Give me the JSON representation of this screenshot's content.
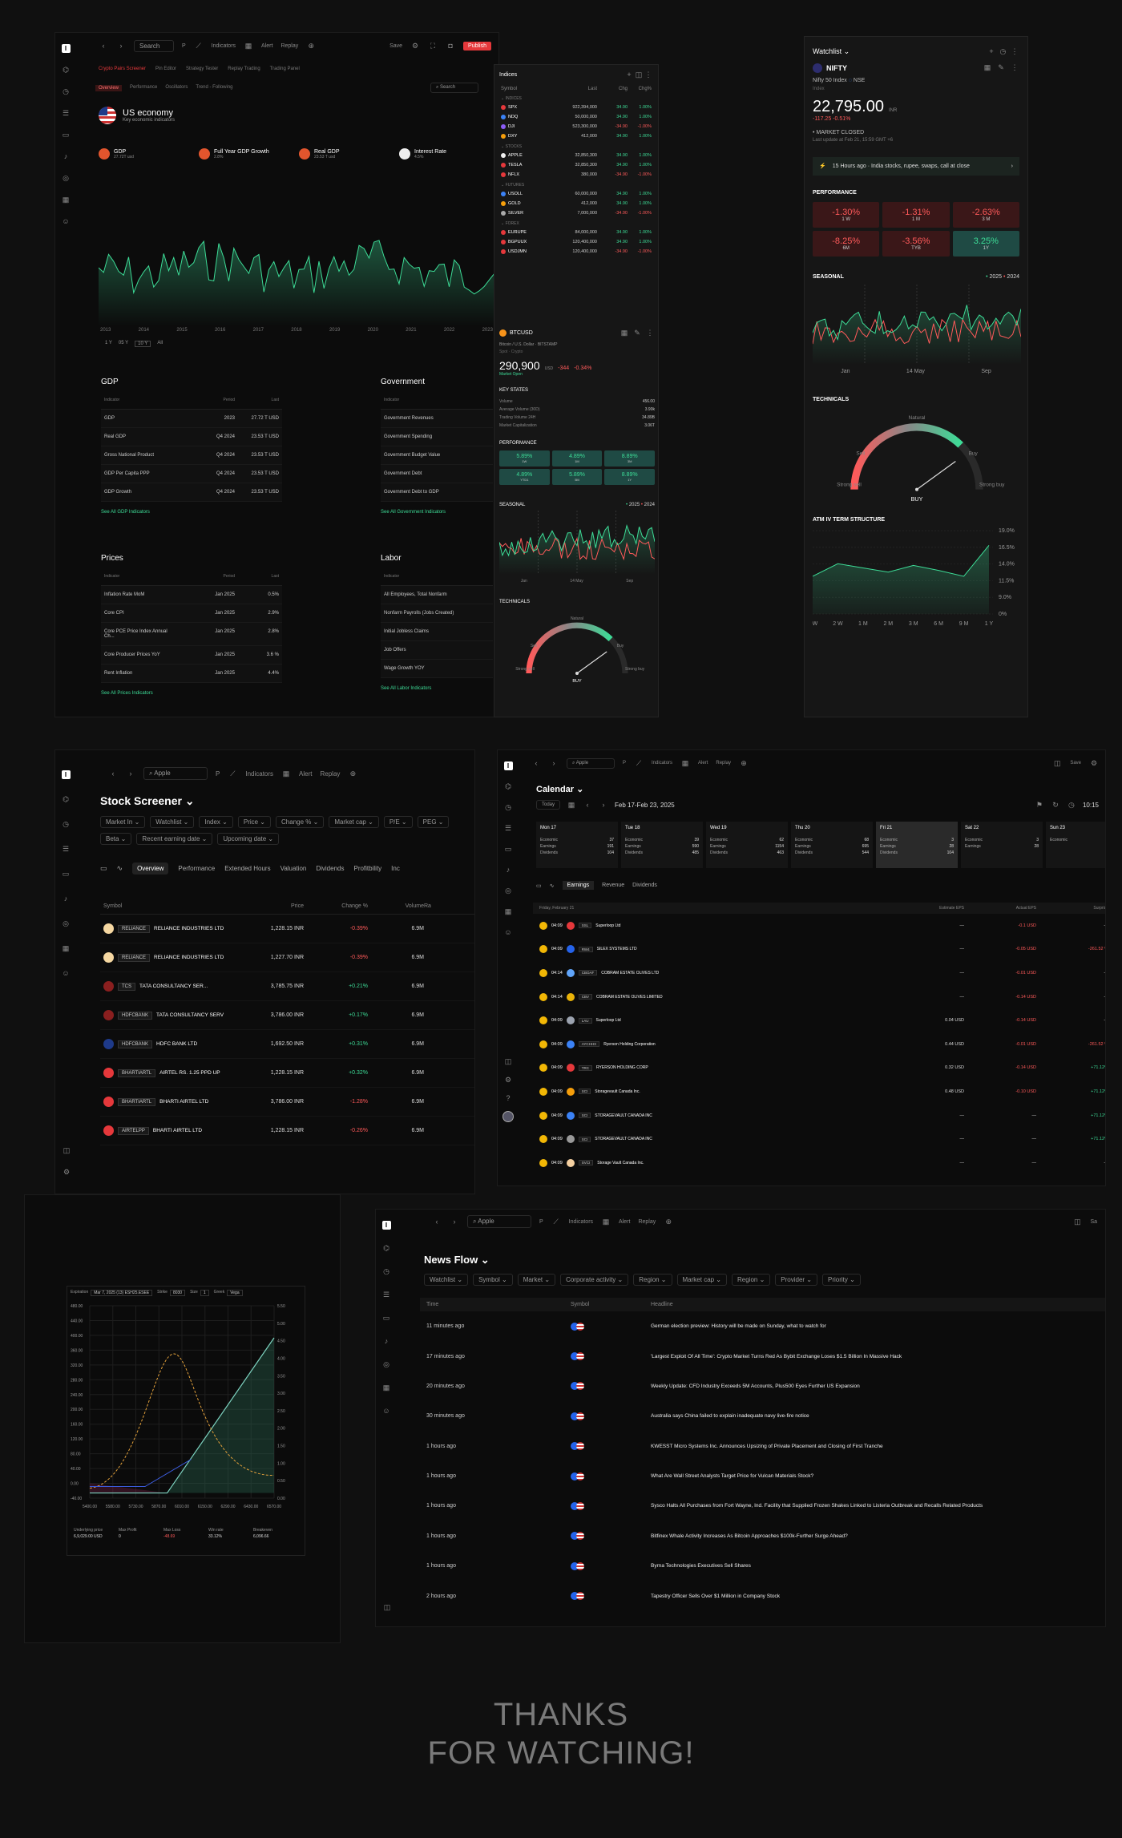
{
  "colors": {
    "bg": "#101010",
    "panel": "#0d0d0d",
    "accent_green": "#3ddc97",
    "accent_red": "#ff5a5a",
    "publish": "#e5383b"
  },
  "econ": {
    "search": "Search",
    "indicators": "Indicators",
    "alert": "Alert",
    "replay": "Replay",
    "save": "Save",
    "publish": "Publish",
    "tabs": [
      "Crypto Pairs Screener",
      "Pin Editor",
      "Strategy Tester",
      "Replay Trading",
      "Trading Panel"
    ],
    "subtabs": [
      "Overview",
      "Performance",
      "Oscillators",
      "Trend - Following"
    ],
    "country": "US economy",
    "country_sub": "Key economic indicators",
    "cards": [
      {
        "label": "GDP",
        "sub": "27.72T usd"
      },
      {
        "label": "Full Year GDP Growth",
        "sub": "2.8%"
      },
      {
        "label": "Real GDP",
        "sub": "23.53 T usd"
      },
      {
        "label": "Interest Rate",
        "sub": "4.5%"
      }
    ],
    "years": [
      "2013",
      "2014",
      "2015",
      "2016",
      "2017",
      "2018",
      "2019",
      "2020",
      "2021",
      "2022",
      "2023"
    ],
    "ranges": [
      "1 Y",
      "05 Y",
      "10 Y",
      "All"
    ],
    "gdp": {
      "title": "GDP",
      "h": [
        "Indicator",
        "Period",
        "Last"
      ],
      "rows": [
        [
          "GDP",
          "2023",
          "27.72 T USD"
        ],
        [
          "Real GDP",
          "Q4 2024",
          "23.53 T USD"
        ],
        [
          "Gross National Product",
          "Q4 2024",
          "23.53 T USD"
        ],
        [
          "GDP Per Capita PPP",
          "Q4 2024",
          "23.53 T USD"
        ],
        [
          "GDP Growth",
          "Q4 2024",
          "23.53 T USD"
        ]
      ],
      "link": "See All GDP Indicators"
    },
    "gov": {
      "title": "Government",
      "h": [
        "Indicator"
      ],
      "rows": [
        "Government Revenues",
        "Government Spending",
        "Government Budget Value",
        "Government Debt",
        "Government Debt to GDP"
      ],
      "link": "See All Government Indicators"
    },
    "prices": {
      "title": "Prices",
      "h": [
        "Indicator",
        "Period",
        "Last"
      ],
      "rows": [
        [
          "Inflation Rate MoM",
          "Jan 2025",
          "0.5%"
        ],
        [
          "Core CPI",
          "Jan 2025",
          "2.9%"
        ],
        [
          "Core PCE Price Index Annual Ch...",
          "Jan 2025",
          "2.8%"
        ],
        [
          "Core Producer Prices YoY",
          "Jan 2025",
          "3.6 %"
        ],
        [
          "Rent Inflation",
          "Jan 2025",
          "4.4%"
        ]
      ],
      "link": "See All Prices Indicators"
    },
    "labor": {
      "title": "Labor",
      "h": [
        "Indicator"
      ],
      "rows": [
        "All Employees, Total Nonfarm",
        "Nonfarm Payrolls (Jobs Created)",
        "Initial Jobless Claims",
        "Job Offers",
        "Wage Growth YOY"
      ],
      "link": "See All Labor Indicators"
    }
  },
  "indices": {
    "title": "Indices",
    "h": [
      "Symbol",
      "Last",
      "Chg",
      "Chg%"
    ],
    "groups": [
      {
        "name": "INDICES",
        "rows": [
          [
            "SPX",
            "922,394,000",
            "34.90",
            "1.00%",
            "g"
          ],
          [
            "NDQ",
            "50,000,000",
            "34.90",
            "1.00%",
            "g"
          ],
          [
            "DJI",
            "523,300,000",
            "-34.90",
            "-1.00%",
            "r"
          ],
          [
            "DXY",
            "412,000",
            "34.90",
            "1.00%",
            "g"
          ]
        ]
      },
      {
        "name": "STOCKS",
        "rows": [
          [
            "APPLE",
            "32,850,300",
            "34.90",
            "1.00%",
            "g"
          ],
          [
            "TESLA",
            "32,850,300",
            "34.90",
            "1.00%",
            "g"
          ],
          [
            "NFLX",
            "380,000",
            "-34.90",
            "-1.00%",
            "r"
          ]
        ]
      },
      {
        "name": "FUTURES",
        "rows": [
          [
            "USOLL",
            "60,000,000",
            "34.90",
            "1.00%",
            "g"
          ],
          [
            "GOLD",
            "412,000",
            "34.90",
            "1.00%",
            "g"
          ],
          [
            "SILVER",
            "7,000,000",
            "-34.90",
            "-1.00%",
            "r"
          ]
        ]
      },
      {
        "name": "FOREX",
        "rows": [
          [
            "EURUPE",
            "84,000,000",
            "34.90",
            "1.00%",
            "g"
          ],
          [
            "BGPUUX",
            "120,400,000",
            "34.90",
            "1.00%",
            "g"
          ],
          [
            "USDJMN",
            "120,400,000",
            "-34.90",
            "-1.00%",
            "r"
          ]
        ]
      }
    ],
    "sym": "BTCUSD",
    "sym_sub": "Bitcoin / U.S. Dollar",
    "exchange": "BITSTAMP",
    "type": "Spot · Crypto",
    "price": "290,900",
    "unit": "USD",
    "chg": "-344",
    "chgp": "-0.34%",
    "status": "Market Open",
    "key_title": "KEY STATES",
    "key": [
      [
        "Volume",
        "456.00"
      ],
      [
        "Average Volume (30D)",
        "3.90k"
      ],
      [
        "Trading Volume 24H",
        "34.89B"
      ],
      [
        "Market Capitalization",
        "3.06T"
      ]
    ],
    "perf_title": "PERFORMANCE",
    "perf": [
      [
        "5.89%",
        "1W"
      ],
      [
        "4.89%",
        "1M"
      ],
      [
        "8.89%",
        "3M"
      ],
      [
        "4.89%",
        "YTD1"
      ],
      [
        "5.89%",
        "5M"
      ],
      [
        "8.89%",
        "1Y"
      ]
    ],
    "seasonal": "SEASONAL",
    "y1": "2025",
    "y2": "2024",
    "months": [
      "Jan",
      "14 May",
      "Sep"
    ],
    "tech": "TECHNICALS",
    "g": [
      "Natural",
      "Sell",
      "Buy",
      "Strong sell",
      "Strong buy"
    ],
    "signal": "BUY"
  },
  "watch": {
    "title": "Watchlist",
    "sym": "NIFTY",
    "sub": "Nifty 50 Index",
    "exch": "NSE",
    "type": "Index",
    "price": "22,795.00",
    "unit": "INR",
    "chg": "-117.25 -0.51%",
    "status": "• MARKET CLOSED",
    "upd": "Last update at Feb 21, 15:59 GMT +6",
    "news": "15 Hours ago · India stocks, rupee, swaps, call at close",
    "perf_title": "PERFORMANCE",
    "perf": [
      [
        "-1.30%",
        "1 W",
        "r"
      ],
      [
        "-1.31%",
        "1 M",
        "r"
      ],
      [
        "-2.63%",
        "3 M",
        "r"
      ],
      [
        "-8.25%",
        "6M",
        "r"
      ],
      [
        "-3.56%",
        "TYB",
        "r"
      ],
      [
        "3.25%",
        "1Y",
        "g"
      ]
    ],
    "seasonal": "SEASONAL",
    "y1": "2025",
    "y2": "2024",
    "months": [
      "Jan",
      "14 May",
      "Sep"
    ],
    "tech": "TECHNICALS",
    "g": [
      "Natural",
      "Sell",
      "Buy",
      "Strong sell",
      "Strong buy"
    ],
    "signal": "BUY",
    "atm": "ATM IV TERM STRUCTURE",
    "atm_y": [
      "19.0%",
      "16.5%",
      "14.0%",
      "11.5%",
      "9.0%",
      "0%"
    ],
    "atm_x": [
      "1 W",
      "2 W",
      "1 M",
      "2 M",
      "3 M",
      "6 M",
      "9 M",
      "1 Y"
    ]
  },
  "screener": {
    "search": "Apple",
    "indicators": "Indicators",
    "alert": "Alert",
    "replay": "Replay",
    "title": "Stock Screener",
    "filters": [
      "Market In",
      "Watchlist",
      "Index",
      "Price",
      "Change %",
      "Market cap",
      "P/E",
      "PEG",
      "Beta",
      "Recent earning date",
      "Upcoming date"
    ],
    "tabs": [
      "Overview",
      "Performance",
      "Extended Hours",
      "Valuation",
      "Dividends",
      "Profitbility",
      "Inc"
    ],
    "h": [
      "Symbol",
      "Price",
      "Change %",
      "Volume",
      "Ra"
    ],
    "rows": [
      [
        "RELIANCE",
        "RELIANCE INDUSTRIES LTD",
        "1,228.15 INR",
        "-0.39%",
        "6.9M",
        "r"
      ],
      [
        "RELIANCE",
        "RELIANCE INDUSTRIES LTD",
        "1,227.70 INR",
        "-0.39%",
        "6.9M",
        "r"
      ],
      [
        "TCS",
        "TATA CONSULTANCY SER...",
        "3,785.75 INR",
        "+0.21%",
        "6.9M",
        "g"
      ],
      [
        "HDFCBANK",
        "TATA CONSULTANCY SERV",
        "3,786.00 INR",
        "+0.17%",
        "6.9M",
        "g"
      ],
      [
        "HDFCBANK",
        "HDFC BANK LTD",
        "1,692.50 INR",
        "+0.31%",
        "6.9M",
        "g"
      ],
      [
        "BHARTIARTL",
        "AIRTEL RS. 1.25 PPD UP",
        "1,228.15 INR",
        "+0.32%",
        "6.9M",
        "g"
      ],
      [
        "BHARTIARTL",
        "BHARTI AIRTEL LTD",
        "3,786.00 INR",
        "-1.28%",
        "6.9M",
        "r"
      ],
      [
        "AIRTELPP",
        "BHARTI AIRTEL LTD",
        "1,228.15 INR",
        "-0.26%",
        "6.9M",
        "r"
      ]
    ]
  },
  "calendar": {
    "search": "Apple",
    "indicators": "Indicators",
    "alert": "Alert",
    "replay": "Replay",
    "save": "Save",
    "time": "10:15",
    "title": "Calendar",
    "today": "Today",
    "range": "Feb 17-Feb 23, 2025",
    "days": [
      {
        "d": "Mon 17",
        "v": [
          "37",
          "191",
          "104"
        ]
      },
      {
        "d": "Tue 18",
        "v": [
          "39",
          "590",
          "485"
        ]
      },
      {
        "d": "Wed 19",
        "v": [
          "62",
          "1154",
          "463"
        ]
      },
      {
        "d": "Thu 20",
        "v": [
          "68",
          "695",
          "544"
        ]
      },
      {
        "d": "Fri 21",
        "v": [
          "3",
          "28",
          "104"
        ]
      },
      {
        "d": "Sat 22",
        "v": [
          "3",
          "28",
          ""
        ]
      },
      {
        "d": "Sun 23",
        "v": [
          "",
          "",
          ""
        ]
      }
    ],
    "labels": [
      "Economic",
      "Earnings",
      "Dividends"
    ],
    "tabs": [
      "Earnings",
      "Revenue",
      "Dividends"
    ],
    "h": [
      "Friday, February 21",
      "Estimate EPS",
      "Actual EPS",
      "Surprise"
    ],
    "rows": [
      [
        "04:09",
        "SSL",
        "Superloop Ltd",
        "—",
        "-0.1 USD",
        "—"
      ],
      [
        "04:09",
        "RW4",
        "SILEX SYSTEMS LTD",
        "—",
        "-0.05 USD",
        "-261.52 %"
      ],
      [
        "04:14",
        "CBOAF",
        "COBRAM ESTATE OLIVES LTD",
        "—",
        "-0.01 USD",
        "—"
      ],
      [
        "04:14",
        "CBV",
        "COBRAM ESTATE OLIVES LIMITED",
        "—",
        "-0.14 USD",
        "—"
      ],
      [
        "04:09",
        "LAU",
        "Superloop Ltd",
        "0.04 USD",
        "-0.14 USD",
        "—"
      ],
      [
        "04:09",
        "AYCHHX",
        "Ryerson Holding Corporation",
        "0.44 USD",
        "-0.01 USD",
        "-261.52 %"
      ],
      [
        "04:09",
        "TRC",
        "RYERSON HOLDING CORP",
        "0.32 USD",
        "-0.14 USD",
        "+71.12%"
      ],
      [
        "04:09",
        "SCI",
        "Storagevault Canada Inc.",
        "0.48 USD",
        "-0.10 USD",
        "+71.12%"
      ],
      [
        "04:09",
        "SCI",
        "STORAGEVAULT CANADA INC",
        "—",
        "—",
        "+71.12%"
      ],
      [
        "04:09",
        "SCI",
        "STORAGEVAULT CANADA INC",
        "—",
        "—",
        "+71.12%"
      ],
      [
        "04:09",
        "SVCI",
        "Storage Vault Canada Inc.",
        "—",
        "—",
        "—"
      ]
    ]
  },
  "options": {
    "top": [
      [
        "Expiration",
        "Mar 7, 2025 (13) ESH25.ESEE"
      ],
      [
        "Strike",
        "8030"
      ],
      [
        "Size",
        "1"
      ],
      [
        "Greek",
        "Vega"
      ]
    ],
    "yl": [
      "480.00",
      "440.00",
      "400.00",
      "360.00",
      "320.00",
      "280.00",
      "240.00",
      "200.00",
      "160.00",
      "120.00",
      "80.00",
      "40.00",
      "0.00",
      "-40.00"
    ],
    "yr": [
      "5.50",
      "5.00",
      "4.50",
      "4.00",
      "3.50",
      "3.00",
      "2.50",
      "2.00",
      "1.50",
      "1.00",
      "0.50",
      "0.00"
    ],
    "x": [
      "5400.00",
      "5580.00",
      "5730.00",
      "5870.00",
      "6010.00",
      "6150.00",
      "6290.00",
      "6430.00",
      "6570.00"
    ],
    "stats": [
      [
        "Underlying price",
        "6,9,029.00 USD",
        ""
      ],
      [
        "Max Profit",
        "0",
        ""
      ],
      [
        "Max Loss",
        "-48.69",
        "r"
      ],
      [
        "Win rate",
        "33.12%",
        ""
      ],
      [
        "Breakeven",
        "6,096.66",
        ""
      ]
    ]
  },
  "news": {
    "search": "Apple",
    "indicators": "Indicators",
    "alert": "Alert",
    "replay": "Replay",
    "save": "Sa",
    "title": "News Flow",
    "filters": [
      "Watchlist",
      "Symbol",
      "Market",
      "Corporate activity",
      "Region",
      "Market cap",
      "Region",
      "Provider",
      "Priority"
    ],
    "h": [
      "Time",
      "Symbol",
      "Headline"
    ],
    "rows": [
      [
        "11 minutes ago",
        "German election preview: History will be made on Sunday, what to watch for"
      ],
      [
        "17 minutes ago",
        "'Largest Exploit Of All Time': Crypto Market Turns Red As Bybit Exchange Loses $1.5 Billion In Massive Hack"
      ],
      [
        "20 minutes ago",
        "Weekly Update: CFD Industry Exceeds 5M Accounts, Plus500 Eyes Further US Expansion"
      ],
      [
        "30 minutes ago",
        "Australia says China failed to explain inadequate navy live-fire notice"
      ],
      [
        "1 hours ago",
        "KWESST Micro Systems Inc. Announces Upsizing of Private Placement and Closing of First Tranche"
      ],
      [
        "1 hours ago",
        "What Are Wall Street Analysts Target Price for Vulcan Materials Stock?"
      ],
      [
        "1 hours ago",
        "Sysco Halts All Purchases from Fort Wayne, Ind. Facility that Supplied Frozen Shakes Linked to Listeria Outbreak and Recalls Related Products"
      ],
      [
        "1 hours ago",
        "Bitfinex Whale Activity Increases As Bitcoin Approaches $100k-Further Surge Ahead?"
      ],
      [
        "1 hours ago",
        "Byrna Technologies Executives Sell Shares"
      ],
      [
        "2 hours ago",
        "Tapestry Officer Sells Over $1 Million in Company Stock"
      ]
    ]
  },
  "footer": {
    "l1": "THANKS",
    "l2": "FOR WATCHING!"
  }
}
